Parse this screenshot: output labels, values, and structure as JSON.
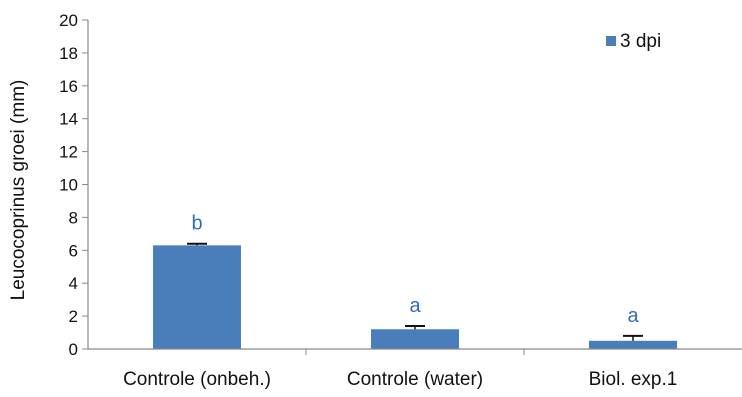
{
  "chart_data": {
    "type": "bar",
    "title": "",
    "xlabel": "",
    "ylabel": "Leucocoprinus groei  (mm)",
    "ylim": [
      0,
      20
    ],
    "yticks": [
      0,
      2,
      4,
      6,
      8,
      10,
      12,
      14,
      16,
      18,
      20
    ],
    "grid": false,
    "legend_position": "top-right",
    "categories": [
      "Controle (onbeh.)",
      "Controle (water)",
      "Biol. exp.1"
    ],
    "series": [
      {
        "name": "3 dpi",
        "color": "#4a7ebb",
        "values": [
          6.3,
          1.2,
          0.5
        ],
        "errors": [
          0.1,
          0.2,
          0.3
        ],
        "annotations": [
          "b",
          "a",
          "a"
        ]
      }
    ],
    "annotation_color": "#2e6dbf"
  }
}
